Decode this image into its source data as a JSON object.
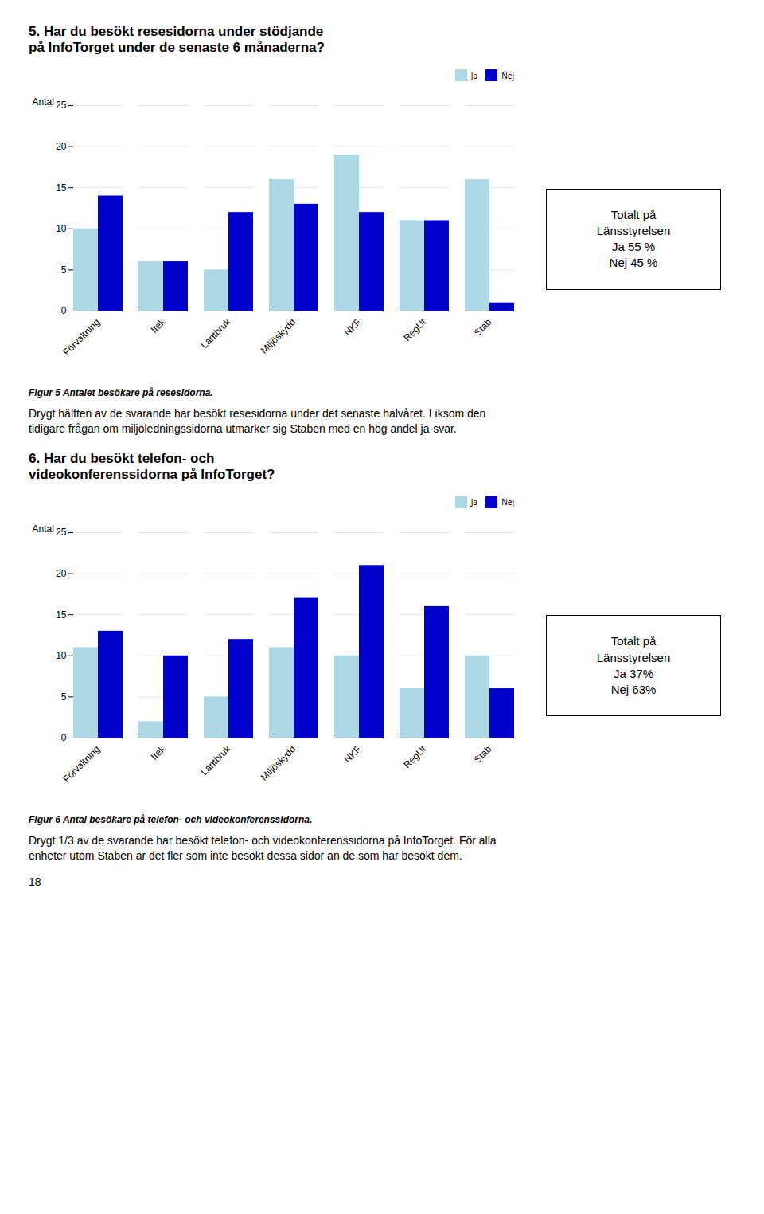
{
  "chart_data": [
    {
      "type": "bar",
      "title": "5. Har du besökt resesidorna under stödjande\npå InfoTorget under de senaste 6 månaderna?",
      "categories": [
        "Förvaltning",
        "Itek",
        "Lantbruk",
        "Miljöskydd",
        "NKF",
        "RegUt",
        "Stab"
      ],
      "series": [
        {
          "name": "Ja",
          "color": "#ADD8E6",
          "values": [
            10,
            6,
            5,
            16,
            19,
            11,
            16
          ]
        },
        {
          "name": "Nej",
          "color": "#0000CD",
          "values": [
            14,
            6,
            12,
            13,
            12,
            11,
            1
          ]
        }
      ],
      "ylabel": "Antal",
      "ylim": [
        0,
        25
      ],
      "yticks": [
        0,
        5,
        10,
        15,
        20,
        25
      ],
      "grid": true,
      "legend": "upper right",
      "caption": "Figur 5 Antalet besökare på resesidorna.",
      "annotations": [
        "Totalt på\nLänsstyrelsen\nJa 55 %\nNej 45 %",
        "Drygt hälften av de svarande har besökt resesidorna under det senaste halvåret. Liksom den\ntidigare frågan om miljöledningssidorna utmärker sig Staben med en hög andel ja-svar."
      ]
    },
    {
      "type": "bar",
      "title": "6. Har du besökt telefon- och\nvideokonferenssidorna på InfoTorget?",
      "categories": [
        "Förvaltning",
        "Itek",
        "Lantbruk",
        "Miljöskydd",
        "NKF",
        "RegUt",
        "Stab"
      ],
      "series": [
        {
          "name": "Ja",
          "color": "#ADD8E6",
          "values": [
            11,
            2,
            5,
            11,
            10,
            6,
            10
          ]
        },
        {
          "name": "Nej",
          "color": "#0000CD",
          "values": [
            13,
            10,
            12,
            17,
            21,
            16,
            6
          ]
        }
      ],
      "ylabel": "Antal",
      "ylim": [
        0,
        25
      ],
      "yticks": [
        0,
        5,
        10,
        15,
        20,
        25
      ],
      "grid": true,
      "legend": "upper right",
      "caption": "Figur 6 Antal besökare på telefon- och videokonferenssidorna.",
      "annotations": [
        "Totalt på\nLänsstyrelsen\nJa 37%\nNej 63%",
        "Drygt 1/3 av de svarande har besökt telefon- och videokonferenssidorna på InfoTorget. För alla\nenheter utom Staben är det fler som inte besökt dessa sidor än de som har besökt dem.",
        "18"
      ]
    }
  ]
}
